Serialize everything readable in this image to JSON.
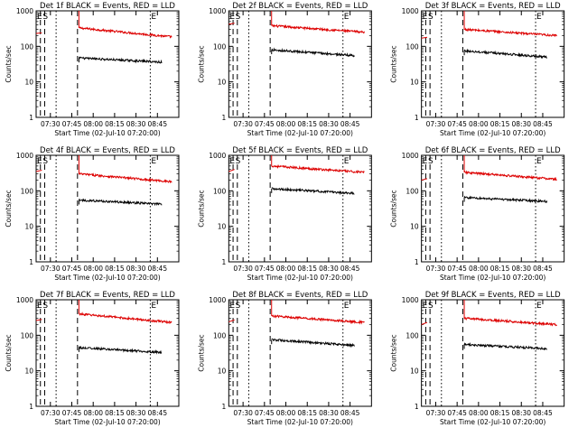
{
  "colors": {
    "events": "#000000",
    "lld": "#dd0000",
    "axis": "#000000"
  },
  "layout_shared": {
    "ylabel": "Counts/sec",
    "xlabel": "Start Time (02-Jul-10 07:20:00)",
    "yticks": [
      1,
      10,
      100,
      1000
    ],
    "yticklabels": [
      "1",
      "10",
      "100",
      "1000"
    ],
    "xticks_min": [
      10,
      25,
      40,
      55,
      70,
      85
    ],
    "xticklabels": [
      "07:30",
      "07:45",
      "08:00",
      "08:15",
      "08:30",
      "08:45"
    ],
    "xlim_min": [
      0,
      100
    ],
    "ylim": [
      1,
      1000
    ],
    "markers": {
      "E_label": "E",
      "S_label": "S"
    }
  },
  "chart_data": [
    {
      "type": "line",
      "title": "Det 1f BLACK = Events, RED = LLD",
      "xlabel": "Start Time (02-Jul-10 07:20:00)",
      "ylabel": "Counts/sec",
      "ylim": [
        1,
        1000
      ],
      "series": [
        {
          "name": "LLD",
          "color": "#dd0000",
          "segments": [
            {
              "x": [
                0,
                4
              ],
              "y": [
                230,
                240
              ]
            },
            {
              "x": [
                30,
                95
              ],
              "y": [
                330,
                185
              ]
            }
          ]
        },
        {
          "name": "Events",
          "color": "#000000",
          "segments": [
            {
              "x": [
                30,
                88
              ],
              "y": [
                47,
                36
              ]
            }
          ]
        }
      ],
      "vlines": [
        {
          "x": 3,
          "style": "dashed"
        },
        {
          "x": 6,
          "style": "dashed"
        },
        {
          "x": 14,
          "style": "dotted"
        },
        {
          "x": 29,
          "style": "dashed"
        },
        {
          "x": 80,
          "style": "dotted"
        }
      ],
      "markers": [
        {
          "label": "E",
          "x": 0
        },
        {
          "label": "S",
          "x": 4
        },
        {
          "label": "E",
          "x": 80
        }
      ]
    },
    {
      "type": "line",
      "title": "Det 2f BLACK = Events, RED = LLD",
      "xlabel": "Start Time (02-Jul-10 07:20:00)",
      "ylabel": "Counts/sec",
      "ylim": [
        1,
        1000
      ],
      "series": [
        {
          "name": "LLD",
          "color": "#dd0000",
          "segments": [
            {
              "x": [
                0,
                4
              ],
              "y": [
                420,
                450
              ]
            },
            {
              "x": [
                30,
                95
              ],
              "y": [
                380,
                250
              ]
            }
          ]
        },
        {
          "name": "Events",
          "color": "#000000",
          "segments": [
            {
              "x": [
                30,
                88
              ],
              "y": [
                80,
                55
              ]
            }
          ]
        }
      ],
      "vlines": [
        {
          "x": 3,
          "style": "dashed"
        },
        {
          "x": 6,
          "style": "dashed"
        },
        {
          "x": 14,
          "style": "dotted"
        },
        {
          "x": 29,
          "style": "dashed"
        },
        {
          "x": 80,
          "style": "dotted"
        }
      ],
      "markers": [
        {
          "label": "E",
          "x": 0
        },
        {
          "label": "S",
          "x": 4
        },
        {
          "label": "E",
          "x": 80
        }
      ]
    },
    {
      "type": "line",
      "title": "Det 3f BLACK = Events, RED = LLD",
      "xlabel": "Start Time (02-Jul-10 07:20:00)",
      "ylabel": "Counts/sec",
      "ylim": [
        1,
        1000
      ],
      "series": [
        {
          "name": "LLD",
          "color": "#dd0000",
          "segments": [
            {
              "x": [
                0,
                4
              ],
              "y": [
                170,
                180
              ]
            },
            {
              "x": [
                30,
                95
              ],
              "y": [
                300,
                200
              ]
            }
          ]
        },
        {
          "name": "Events",
          "color": "#000000",
          "segments": [
            {
              "x": [
                30,
                88
              ],
              "y": [
                75,
                50
              ]
            }
          ]
        }
      ],
      "vlines": [
        {
          "x": 3,
          "style": "dashed"
        },
        {
          "x": 6,
          "style": "dashed"
        },
        {
          "x": 14,
          "style": "dotted"
        },
        {
          "x": 29,
          "style": "dashed"
        },
        {
          "x": 80,
          "style": "dotted"
        }
      ],
      "markers": [
        {
          "label": "E",
          "x": 0
        },
        {
          "label": "S",
          "x": 4
        },
        {
          "label": "E",
          "x": 80
        }
      ]
    },
    {
      "type": "line",
      "title": "Det 4f BLACK = Events, RED = LLD",
      "xlabel": "Start Time (02-Jul-10 07:20:00)",
      "ylabel": "Counts/sec",
      "ylim": [
        1,
        1000
      ],
      "series": [
        {
          "name": "LLD",
          "color": "#dd0000",
          "segments": [
            {
              "x": [
                0,
                4
              ],
              "y": [
                350,
                380
              ]
            },
            {
              "x": [
                30,
                95
              ],
              "y": [
                300,
                180
              ]
            }
          ]
        },
        {
          "name": "Events",
          "color": "#000000",
          "segments": [
            {
              "x": [
                30,
                88
              ],
              "y": [
                55,
                42
              ]
            }
          ]
        }
      ],
      "vlines": [
        {
          "x": 3,
          "style": "dashed"
        },
        {
          "x": 6,
          "style": "dashed"
        },
        {
          "x": 14,
          "style": "dotted"
        },
        {
          "x": 29,
          "style": "dashed"
        },
        {
          "x": 80,
          "style": "dotted"
        }
      ],
      "markers": [
        {
          "label": "E",
          "x": 0
        },
        {
          "label": "S",
          "x": 4
        },
        {
          "label": "E",
          "x": 80
        }
      ]
    },
    {
      "type": "line",
      "title": "Det 5f BLACK = Events, RED = LLD",
      "xlabel": "Start Time (02-Jul-10 07:20:00)",
      "ylabel": "Counts/sec",
      "ylim": [
        1,
        1000
      ],
      "series": [
        {
          "name": "LLD",
          "color": "#dd0000",
          "segments": [
            {
              "x": [
                0,
                4
              ],
              "y": [
                350,
                400
              ]
            },
            {
              "x": [
                30,
                95
              ],
              "y": [
                500,
                330
              ]
            }
          ]
        },
        {
          "name": "Events",
          "color": "#000000",
          "segments": [
            {
              "x": [
                30,
                88
              ],
              "y": [
                115,
                85
              ]
            }
          ]
        }
      ],
      "vlines": [
        {
          "x": 3,
          "style": "dashed"
        },
        {
          "x": 6,
          "style": "dashed"
        },
        {
          "x": 14,
          "style": "dotted"
        },
        {
          "x": 29,
          "style": "dashed"
        },
        {
          "x": 80,
          "style": "dotted"
        }
      ],
      "markers": [
        {
          "label": "E",
          "x": 0
        },
        {
          "label": "S",
          "x": 4
        },
        {
          "label": "E",
          "x": 80
        }
      ]
    },
    {
      "type": "line",
      "title": "Det 6f BLACK = Events, RED = LLD",
      "xlabel": "Start Time (02-Jul-10 07:20:00)",
      "ylabel": "Counts/sec",
      "ylim": [
        1,
        1000
      ],
      "series": [
        {
          "name": "LLD",
          "color": "#dd0000",
          "segments": [
            {
              "x": [
                0,
                4
              ],
              "y": [
                200,
                220
              ]
            },
            {
              "x": [
                30,
                95
              ],
              "y": [
                330,
                210
              ]
            }
          ]
        },
        {
          "name": "Events",
          "color": "#000000",
          "segments": [
            {
              "x": [
                30,
                88
              ],
              "y": [
                65,
                50
              ]
            }
          ]
        }
      ],
      "vlines": [
        {
          "x": 3,
          "style": "dashed"
        },
        {
          "x": 6,
          "style": "dashed"
        },
        {
          "x": 14,
          "style": "dotted"
        },
        {
          "x": 29,
          "style": "dashed"
        },
        {
          "x": 80,
          "style": "dotted"
        }
      ],
      "markers": [
        {
          "label": "E",
          "x": 0
        },
        {
          "label": "S",
          "x": 4
        },
        {
          "label": "E",
          "x": 80
        }
      ]
    },
    {
      "type": "line",
      "title": "Det 7f BLACK = Events, RED = LLD",
      "xlabel": "Start Time (02-Jul-10 07:20:00)",
      "ylabel": "Counts/sec",
      "ylim": [
        1,
        1000
      ],
      "series": [
        {
          "name": "LLD",
          "color": "#dd0000",
          "segments": [
            {
              "x": [
                0,
                4
              ],
              "y": [
                260,
                280
              ]
            },
            {
              "x": [
                30,
                95
              ],
              "y": [
                400,
                230
              ]
            }
          ]
        },
        {
          "name": "Events",
          "color": "#000000",
          "segments": [
            {
              "x": [
                30,
                88
              ],
              "y": [
                45,
                33
              ]
            }
          ]
        }
      ],
      "vlines": [
        {
          "x": 3,
          "style": "dashed"
        },
        {
          "x": 6,
          "style": "dashed"
        },
        {
          "x": 14,
          "style": "dotted"
        },
        {
          "x": 29,
          "style": "dashed"
        },
        {
          "x": 80,
          "style": "dotted"
        }
      ],
      "markers": [
        {
          "label": "E",
          "x": 0
        },
        {
          "label": "S",
          "x": 4
        },
        {
          "label": "E",
          "x": 80
        }
      ]
    },
    {
      "type": "line",
      "title": "Det 8f BLACK = Events, RED = LLD",
      "xlabel": "Start Time (02-Jul-10 07:20:00)",
      "ylabel": "Counts/sec",
      "ylim": [
        1,
        1000
      ],
      "series": [
        {
          "name": "LLD",
          "color": "#dd0000",
          "segments": [
            {
              "x": [
                0,
                4
              ],
              "y": [
                240,
                270
              ]
            },
            {
              "x": [
                30,
                95
              ],
              "y": [
                350,
                230
              ]
            }
          ]
        },
        {
          "name": "Events",
          "color": "#000000",
          "segments": [
            {
              "x": [
                30,
                88
              ],
              "y": [
                75,
                52
              ]
            }
          ]
        }
      ],
      "vlines": [
        {
          "x": 3,
          "style": "dashed"
        },
        {
          "x": 6,
          "style": "dashed"
        },
        {
          "x": 14,
          "style": "dotted"
        },
        {
          "x": 29,
          "style": "dashed"
        },
        {
          "x": 80,
          "style": "dotted"
        }
      ],
      "markers": [
        {
          "label": "E",
          "x": 0
        },
        {
          "label": "S",
          "x": 4
        },
        {
          "label": "E",
          "x": 80
        }
      ]
    },
    {
      "type": "line",
      "title": "Det 9f BLACK = Events, RED = LLD",
      "xlabel": "Start Time (02-Jul-10 07:20:00)",
      "ylabel": "Counts/sec",
      "ylim": [
        1,
        1000
      ],
      "series": [
        {
          "name": "LLD",
          "color": "#dd0000",
          "segments": [
            {
              "x": [
                0,
                4
              ],
              "y": [
                200,
                230
              ]
            },
            {
              "x": [
                30,
                95
              ],
              "y": [
                300,
                200
              ]
            }
          ]
        },
        {
          "name": "Events",
          "color": "#000000",
          "segments": [
            {
              "x": [
                30,
                88
              ],
              "y": [
                55,
                42
              ]
            }
          ]
        }
      ],
      "vlines": [
        {
          "x": 3,
          "style": "dashed"
        },
        {
          "x": 6,
          "style": "dashed"
        },
        {
          "x": 14,
          "style": "dotted"
        },
        {
          "x": 29,
          "style": "dashed"
        },
        {
          "x": 80,
          "style": "dotted"
        }
      ],
      "markers": [
        {
          "label": "E",
          "x": 0
        },
        {
          "label": "S",
          "x": 4
        },
        {
          "label": "E",
          "x": 80
        }
      ]
    }
  ]
}
